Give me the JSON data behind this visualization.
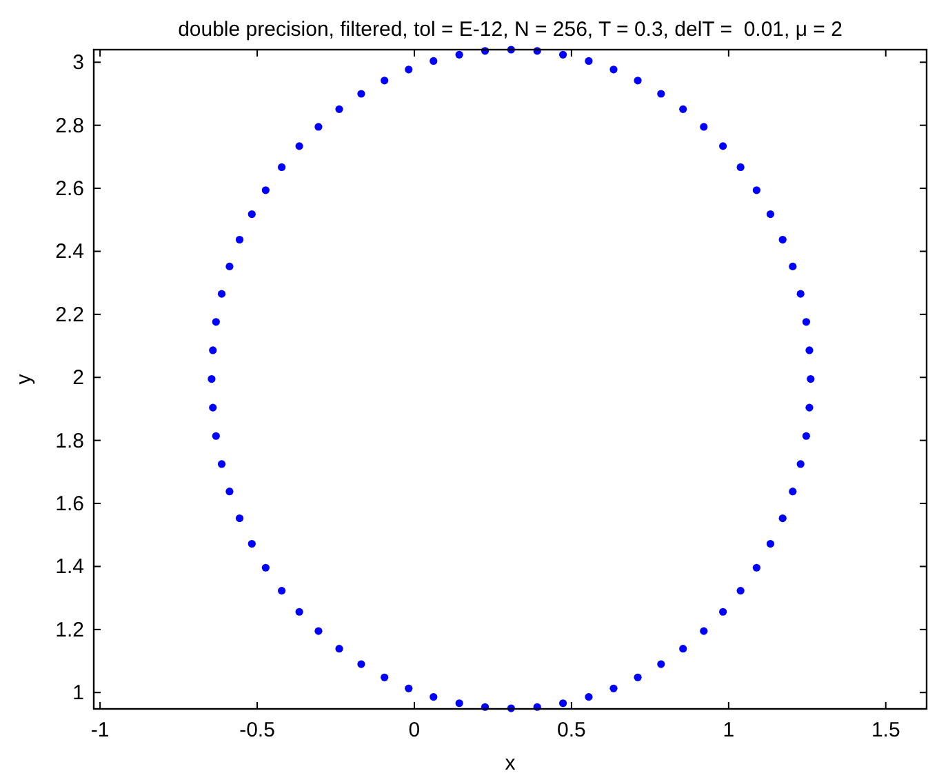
{
  "chart_data": {
    "type": "scatter",
    "title": "double precision, filtered, tol = E-12, N = 256, T = 0.3, delT =  0.01, μ = 2",
    "xlabel": "x",
    "ylabel": "y",
    "xlim": [
      -1.02,
      1.63
    ],
    "xticks": [
      -1,
      -0.5,
      0,
      0.5,
      1,
      1.5
    ],
    "ylim": [
      0.948,
      3.04
    ],
    "yticks": [
      1,
      1.2,
      1.4,
      1.6,
      1.8,
      2,
      2.2,
      2.4,
      2.6,
      2.8,
      3
    ],
    "grid": false,
    "marker": "circle",
    "series": [
      {
        "color": "#0000ff",
        "x": [
          1.261,
          1.257,
          1.247,
          1.229,
          1.204,
          1.172,
          1.133,
          1.089,
          1.038,
          0.982,
          0.921,
          0.855,
          0.785,
          0.711,
          0.634,
          0.555,
          0.473,
          0.391,
          0.308,
          0.225,
          0.143,
          0.061,
          -0.018,
          -0.095,
          -0.169,
          -0.239,
          -0.305,
          -0.366,
          -0.422,
          -0.473,
          -0.517,
          -0.556,
          -0.588,
          -0.613,
          -0.631,
          -0.641,
          -0.645,
          -0.641,
          -0.631,
          -0.613,
          -0.588,
          -0.556,
          -0.517,
          -0.473,
          -0.422,
          -0.366,
          -0.305,
          -0.239,
          -0.169,
          -0.095,
          -0.018,
          0.061,
          0.143,
          0.225,
          0.308,
          0.391,
          0.473,
          0.555,
          0.634,
          0.711,
          0.785,
          0.855,
          0.921,
          0.982,
          1.038,
          1.089,
          1.133,
          1.172,
          1.204,
          1.229,
          1.247,
          1.257
        ],
        "values": [
          1.995,
          2.086,
          2.176,
          2.265,
          2.352,
          2.437,
          2.518,
          2.594,
          2.667,
          2.734,
          2.795,
          2.851,
          2.9,
          2.942,
          2.977,
          3.004,
          3.024,
          3.036,
          3.04,
          3.036,
          3.024,
          3.004,
          2.977,
          2.942,
          2.9,
          2.851,
          2.795,
          2.734,
          2.667,
          2.594,
          2.518,
          2.437,
          2.352,
          2.265,
          2.176,
          2.086,
          1.995,
          1.904,
          1.814,
          1.725,
          1.638,
          1.553,
          1.472,
          1.396,
          1.323,
          1.256,
          1.195,
          1.139,
          1.09,
          1.048,
          1.013,
          0.986,
          0.966,
          0.954,
          0.95,
          0.954,
          0.966,
          0.986,
          1.013,
          1.048,
          1.09,
          1.139,
          1.195,
          1.256,
          1.323,
          1.396,
          1.472,
          1.553,
          1.638,
          1.725,
          1.814,
          1.904
        ]
      }
    ]
  }
}
